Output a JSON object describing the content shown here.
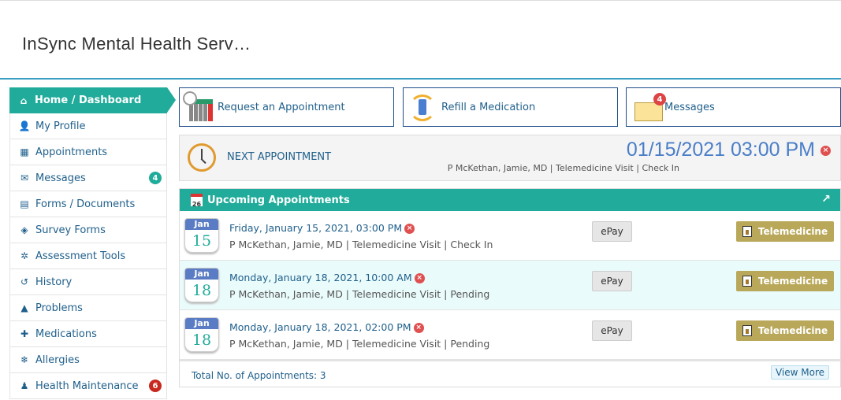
{
  "header": {
    "title": "InSync Mental Health Serv…"
  },
  "sidebar": {
    "items": [
      {
        "label": "Home / Dashboard",
        "icon": "home-icon",
        "glyph": "⌂"
      },
      {
        "label": "My Profile",
        "icon": "user-icon",
        "glyph": "👤"
      },
      {
        "label": "Appointments",
        "icon": "calendar-icon",
        "glyph": "▦"
      },
      {
        "label": "Messages",
        "icon": "envelope-icon",
        "glyph": "✉",
        "badge": "4"
      },
      {
        "label": "Forms / Documents",
        "icon": "file-icon",
        "glyph": "▤"
      },
      {
        "label": "Survey Forms",
        "icon": "survey-icon",
        "glyph": "◈"
      },
      {
        "label": "Assessment Tools",
        "icon": "assessment-icon",
        "glyph": "✲"
      },
      {
        "label": "History",
        "icon": "history-icon",
        "glyph": "↺"
      },
      {
        "label": "Problems",
        "icon": "warning-icon",
        "glyph": "▲"
      },
      {
        "label": "Medications",
        "icon": "medkit-icon",
        "glyph": "✚"
      },
      {
        "label": "Allergies",
        "icon": "snowflake-icon",
        "glyph": "❄"
      },
      {
        "label": "Health Maintenance",
        "icon": "doctor-icon",
        "glyph": "♟",
        "badge": "6"
      }
    ]
  },
  "tiles": {
    "request": "Request an Appointment",
    "refill": "Refill a Medication",
    "messages": "Messages",
    "messages_badge": "4"
  },
  "next": {
    "label": "NEXT APPOINTMENT",
    "datetime": "01/15/2021 03:00 PM",
    "details": "P McKethan, Jamie, MD | Telemedicine Visit | Check In"
  },
  "upcoming": {
    "title": "Upcoming Appointments",
    "cal_icon_day": "26",
    "rows": [
      {
        "month": "Jan",
        "day": "15",
        "datetime": "Friday, January 15, 2021, 03:00 PM",
        "details": "P McKethan, Jamie, MD | Telemedicine Visit | Check In",
        "epay": "ePay",
        "tele": "Telemedicine"
      },
      {
        "month": "Jan",
        "day": "18",
        "datetime": "Monday, January 18, 2021, 10:00 AM",
        "details": "P McKethan, Jamie, MD | Telemedicine Visit | Pending",
        "epay": "ePay",
        "tele": "Telemedicine"
      },
      {
        "month": "Jan",
        "day": "18",
        "datetime": "Monday, January 18, 2021, 02:00 PM",
        "details": "P McKethan, Jamie, MD | Telemedicine Visit | Pending",
        "epay": "ePay",
        "tele": "Telemedicine"
      }
    ],
    "total": "Total No. of Appointments: 3",
    "view_more": "View More"
  },
  "colors": {
    "teal": "#20ab9a",
    "navy": "#1f5f8b",
    "gold": "#b9a85a",
    "badge_teal": "#20ab9a",
    "badge_red": "#c8281e"
  }
}
